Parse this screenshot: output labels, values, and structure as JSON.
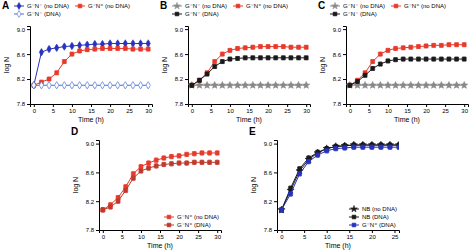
{
  "chart_data": [
    {
      "type": "line",
      "title": "A",
      "x_label": "Time (h)",
      "y_label": "log N",
      "x": [
        0,
        2,
        4,
        6,
        8,
        10,
        12,
        14,
        16,
        18,
        20,
        22,
        24,
        26,
        28,
        30
      ],
      "series": [
        {
          "name": "G⁻N⁻ (no DNA)",
          "color": "#2832c0",
          "marker": "diamond",
          "error": 0.03,
          "values": [
            8.1,
            8.63,
            8.68,
            8.7,
            8.72,
            8.73,
            8.74,
            8.75,
            8.76,
            8.76,
            8.77,
            8.77,
            8.77,
            8.77,
            8.77,
            8.77
          ]
        },
        {
          "name": "G⁻N⁺ (no DNA)",
          "color": "#e8392a",
          "marker": "square",
          "error": 0.03,
          "values": [
            8.1,
            8.15,
            8.2,
            8.3,
            8.48,
            8.6,
            8.65,
            8.67,
            8.68,
            8.69,
            8.69,
            8.69,
            8.69,
            8.68,
            8.68,
            8.68
          ]
        },
        {
          "name": "G⁻N⁻ (DNA)",
          "color": "#4a6fd4",
          "marker": "diamond-open",
          "error": 0.03,
          "values": [
            8.1,
            8.1,
            8.1,
            8.1,
            8.1,
            8.1,
            8.1,
            8.1,
            8.1,
            8.1,
            8.1,
            8.1,
            8.1,
            8.1,
            8.1,
            8.1
          ]
        }
      ],
      "xlim": [
        -1,
        31
      ],
      "xticks": [
        0,
        5,
        10,
        15,
        20,
        25,
        30
      ],
      "ylim": [
        7.8,
        9.05
      ],
      "yticks": [
        7.8,
        8.2,
        8.6,
        {
          "value": 9,
          "label": "9.0"
        }
      ],
      "legend": "upper left"
    },
    {
      "type": "line",
      "title": "B",
      "x_label": "Time (h)",
      "y_label": "log N",
      "x": [
        0,
        2,
        4,
        6,
        8,
        10,
        12,
        14,
        16,
        18,
        20,
        22,
        24,
        26,
        28,
        30
      ],
      "series": [
        {
          "name": "G⁻N⁻ (no DNA)",
          "color": "#888888",
          "marker": "star",
          "error": 0.03,
          "values": [
            8.1,
            8.1,
            8.1,
            8.1,
            8.1,
            8.1,
            8.1,
            8.1,
            8.1,
            8.1,
            8.1,
            8.1,
            8.1,
            8.1,
            8.1,
            8.1
          ]
        },
        {
          "name": "G⁻N⁺ (no DNA)",
          "color": "#e8392a",
          "marker": "square",
          "error": 0.03,
          "values": [
            8.1,
            8.18,
            8.3,
            8.48,
            8.6,
            8.66,
            8.69,
            8.7,
            8.71,
            8.72,
            8.72,
            8.72,
            8.72,
            8.71,
            8.71,
            8.71
          ]
        },
        {
          "name": "G⁻N⁻ (DNA)",
          "color": "#1a1a1a",
          "marker": "square",
          "error": 0.03,
          "values": [
            8.1,
            8.18,
            8.28,
            8.4,
            8.48,
            8.52,
            8.53,
            8.54,
            8.54,
            8.54,
            8.54,
            8.54,
            8.54,
            8.54,
            8.54,
            8.54
          ]
        }
      ],
      "xlim": [
        -1,
        31
      ],
      "xticks": [
        0,
        5,
        10,
        15,
        20,
        25,
        30
      ],
      "ylim": [
        7.8,
        9.05
      ],
      "yticks": [
        7.8,
        8.2,
        8.6,
        {
          "value": 9,
          "label": "9.0"
        }
      ],
      "legend": "upper left"
    },
    {
      "type": "line",
      "title": "C",
      "x_label": "Time (h)",
      "y_label": "log N",
      "x": [
        0,
        2,
        4,
        6,
        8,
        10,
        12,
        14,
        16,
        18,
        20,
        22,
        24,
        26,
        28,
        30
      ],
      "series": [
        {
          "name": "G⁻N⁻ (no DNA)",
          "color": "#888888",
          "marker": "star",
          "error": 0.03,
          "values": [
            8.1,
            8.1,
            8.1,
            8.1,
            8.1,
            8.1,
            8.1,
            8.1,
            8.1,
            8.1,
            8.1,
            8.1,
            8.1,
            8.1,
            8.1,
            8.1
          ]
        },
        {
          "name": "G⁻N⁺ (no DNA)",
          "color": "#e8392a",
          "marker": "square",
          "error": 0.03,
          "values": [
            8.1,
            8.18,
            8.3,
            8.48,
            8.6,
            8.66,
            8.69,
            8.7,
            8.71,
            8.72,
            8.73,
            8.74,
            8.74,
            8.75,
            8.75,
            8.75
          ]
        },
        {
          "name": "G⁻N⁻ (DNA)",
          "color": "#1a1a1a",
          "marker": "square",
          "error": 0.03,
          "values": [
            8.1,
            8.16,
            8.26,
            8.37,
            8.44,
            8.49,
            8.51,
            8.52,
            8.52,
            8.52,
            8.52,
            8.52,
            8.52,
            8.52,
            8.52,
            8.52
          ]
        }
      ],
      "xlim": [
        -1,
        31
      ],
      "xticks": [
        0,
        5,
        10,
        15,
        20,
        25,
        30
      ],
      "ylim": [
        7.8,
        9.05
      ],
      "yticks": [
        7.8,
        8.2,
        8.6,
        {
          "value": 9,
          "label": "9.0"
        }
      ],
      "legend": "upper left"
    },
    {
      "type": "line",
      "title": "D",
      "x_label": "Time (h)",
      "y_label": "log N",
      "x": [
        0,
        2,
        4,
        6,
        8,
        10,
        12,
        14,
        16,
        18,
        20,
        22,
        24,
        26,
        28,
        30
      ],
      "series": [
        {
          "name": "G⁻N⁺ (no DNA)",
          "color": "#e8392a",
          "marker": "square",
          "error": 0.03,
          "values": [
            8.08,
            8.15,
            8.25,
            8.4,
            8.58,
            8.68,
            8.73,
            8.77,
            8.8,
            8.82,
            8.83,
            8.85,
            8.86,
            8.87,
            8.87,
            8.87
          ]
        },
        {
          "name": "G⁻N⁺ (DNA)",
          "color": "#c0392b",
          "marker": "square",
          "error": 0.03,
          "values": [
            8.08,
            8.12,
            8.2,
            8.35,
            8.52,
            8.62,
            8.66,
            8.69,
            8.71,
            8.72,
            8.73,
            8.73,
            8.74,
            8.74,
            8.74,
            8.74
          ]
        }
      ],
      "xlim": [
        -1,
        31
      ],
      "xticks": [
        0,
        5,
        10,
        15,
        20,
        25,
        30
      ],
      "ylim": [
        7.8,
        9.05
      ],
      "yticks": [
        7.8,
        8.2,
        8.6,
        {
          "value": 9,
          "label": "9.0"
        }
      ],
      "legend": "lower right"
    },
    {
      "type": "line",
      "title": "E",
      "x_label": "Time (h)",
      "y_label": "log N",
      "x": [
        0,
        2,
        4,
        6,
        8,
        10,
        12,
        14,
        16,
        18,
        20,
        22,
        24,
        26
      ],
      "series": [
        {
          "name": "NB (no DNA)",
          "color": "#1a1a1a",
          "marker": "star",
          "error": 0.03,
          "values": [
            8.08,
            8.35,
            8.62,
            8.78,
            8.87,
            8.93,
            8.96,
            8.97,
            8.98,
            8.98,
            8.98,
            8.98,
            8.98,
            8.98
          ]
        },
        {
          "name": "NB (DNA)",
          "color": "#1a1a1a",
          "marker": "square",
          "error": 0.03,
          "values": [
            8.08,
            8.38,
            8.65,
            8.8,
            8.88,
            8.93,
            8.96,
            8.97,
            8.98,
            8.98,
            8.98,
            8.98,
            8.98,
            8.98
          ]
        },
        {
          "name": "G⁻N⁺ (DNA)",
          "color": "#2832c0",
          "marker": "square",
          "error": 0.03,
          "values": [
            8.08,
            8.3,
            8.58,
            8.75,
            8.84,
            8.9,
            8.93,
            8.94,
            8.95,
            8.95,
            8.95,
            8.95,
            8.95,
            8.95
          ]
        }
      ],
      "xlim": [
        -1,
        26
      ],
      "xticks": [
        0,
        5,
        10,
        15,
        20,
        25
      ],
      "ylim": [
        7.8,
        9.05
      ],
      "yticks": [
        7.8,
        8.2,
        8.6,
        {
          "value": 9,
          "label": "9.0"
        }
      ],
      "legend": "lower right"
    }
  ]
}
